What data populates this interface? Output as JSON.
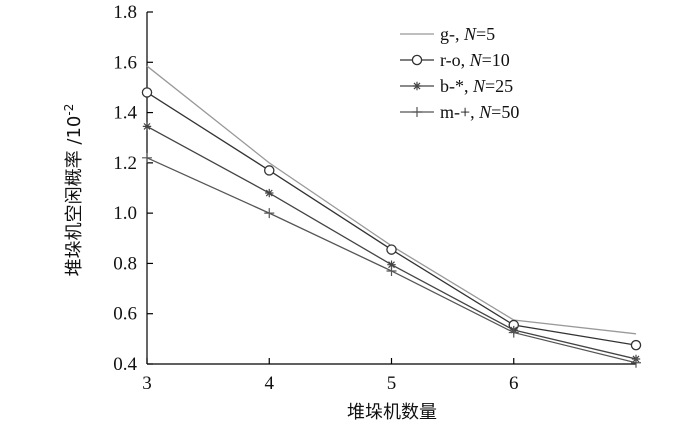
{
  "chart_data": {
    "type": "line",
    "xlabel": "堆垛机数量",
    "ylabel": "堆垛机空闲概率 /10",
    "ylabel_exponent": "-2",
    "xlim": [
      3,
      7
    ],
    "ylim": [
      0.4,
      1.8
    ],
    "xticks": [
      "3",
      "4",
      "5",
      "6"
    ],
    "yticks": [
      "0.4",
      "0.6",
      "0.8",
      "1.0",
      "1.2",
      "1.4",
      "1.6",
      "1.8"
    ],
    "grid": false,
    "legend_position": "top-right",
    "x": [
      3,
      4,
      5,
      6,
      7
    ],
    "series": [
      {
        "name": "g-, ",
        "n_label": "N",
        "n_value": "=5",
        "values": [
          1.585,
          1.2,
          0.87,
          0.575,
          0.52
        ],
        "color": "#999999",
        "marker": "none"
      },
      {
        "name": "r-o, ",
        "n_label": "N",
        "n_value": "=10",
        "values": [
          1.48,
          1.17,
          0.855,
          0.555,
          0.475
        ],
        "color": "#333333",
        "marker": "circle"
      },
      {
        "name": "b-*, ",
        "n_label": "N",
        "n_value": "=25",
        "values": [
          1.345,
          1.08,
          0.795,
          0.535,
          0.42
        ],
        "color": "#444444",
        "marker": "star"
      },
      {
        "name": "m-+, ",
        "n_label": "N",
        "n_value": "=50",
        "values": [
          1.22,
          1.0,
          0.77,
          0.525,
          0.405
        ],
        "color": "#555555",
        "marker": "plus"
      }
    ]
  }
}
